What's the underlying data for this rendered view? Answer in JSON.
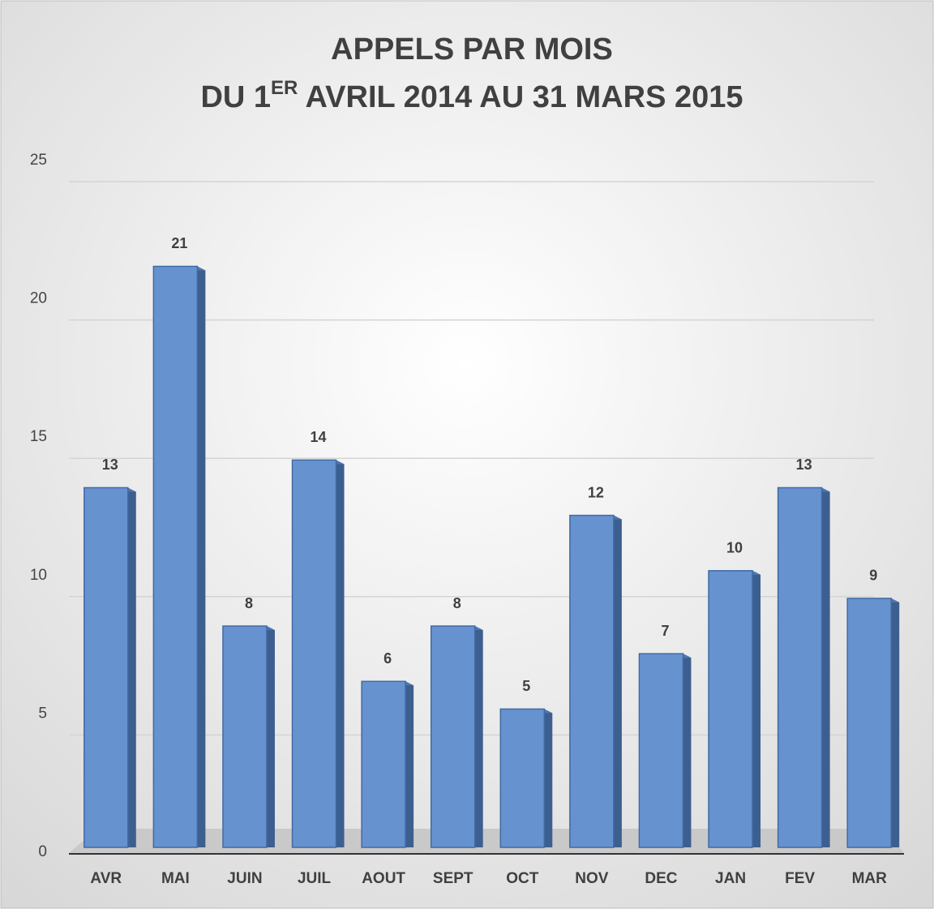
{
  "chart_data": {
    "type": "bar",
    "title": [
      "APPELS PAR MOIS",
      [
        "DU 1",
        "ER",
        " AVRIL 2014 AU 31 MARS 2015"
      ]
    ],
    "categories": [
      "AVR",
      "MAI",
      "JUIN",
      "JUIL",
      "AOUT",
      "SEPT",
      "OCT",
      "NOV",
      "DEC",
      "JAN",
      "FEV",
      "MAR"
    ],
    "values": [
      13,
      21,
      8,
      14,
      6,
      8,
      5,
      12,
      7,
      10,
      13,
      9
    ],
    "color": "#6693cf",
    "ylim": [
      0,
      25
    ],
    "yticks": [
      0,
      5,
      10,
      15,
      20,
      25
    ],
    "grid": true
  }
}
